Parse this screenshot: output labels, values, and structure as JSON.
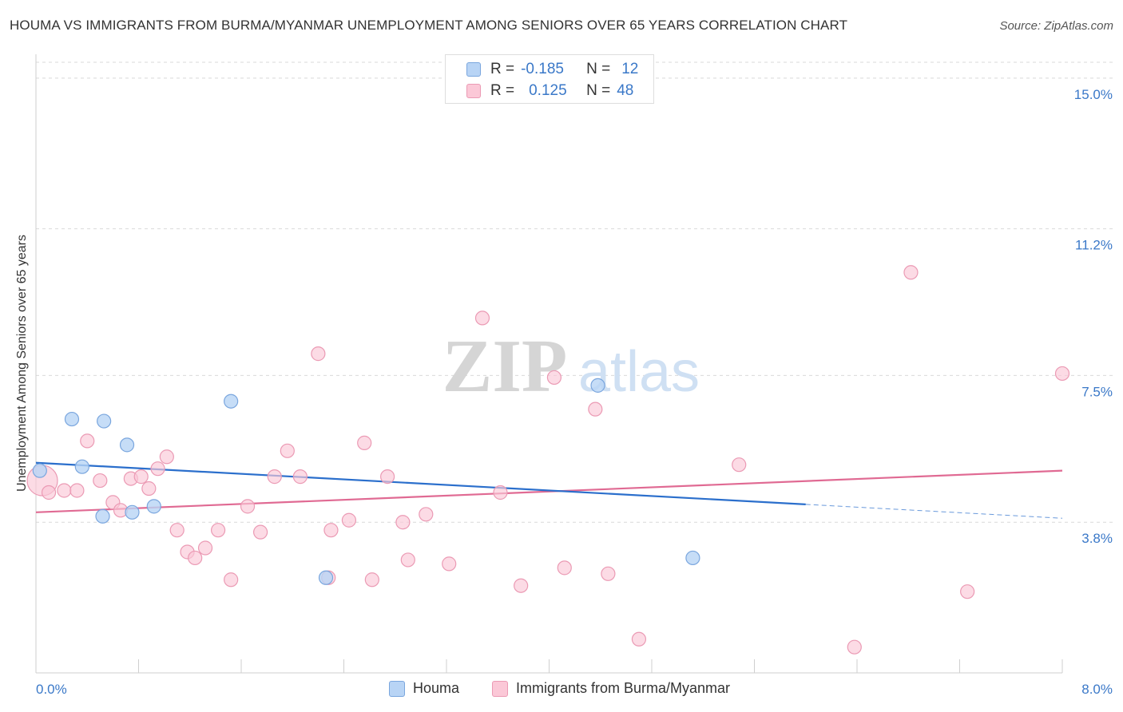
{
  "title": "HOUMA VS IMMIGRANTS FROM BURMA/MYANMAR UNEMPLOYMENT AMONG SENIORS OVER 65 YEARS CORRELATION CHART",
  "source": "Source: ZipAtlas.com",
  "watermark": {
    "zip": "ZIP",
    "atlas": "atlas"
  },
  "legend": {
    "rows": [
      {
        "r_label": "R =",
        "r_value": "-0.185",
        "n_label": "N =",
        "n_value": "12"
      },
      {
        "r_label": "R =",
        "r_value": "0.125",
        "n_label": "N =",
        "n_value": "48"
      }
    ]
  },
  "colors": {
    "houma_fill": "#b8d4f5",
    "houma_stroke": "#7aa6de",
    "houma_line": "#2b6fcc",
    "burma_fill": "#fbc8d7",
    "burma_stroke": "#eb9ab4",
    "burma_line": "#e06a93",
    "axis_text": "#3a78c8",
    "grid": "#d9d9d9"
  },
  "chart_data": {
    "type": "scatter",
    "title": "HOUMA VS IMMIGRANTS FROM BURMA/MYANMAR UNEMPLOYMENT AMONG SENIORS OVER 65 YEARS CORRELATION CHART",
    "xlabel": "",
    "ylabel": "Unemployment Among Seniors over 65 years",
    "xlim": [
      0,
      8
    ],
    "ylim": [
      0,
      15.4
    ],
    "x_tick_labels": [
      "0.0%",
      "8.0%"
    ],
    "y_ticks": [
      3.8,
      7.5,
      11.2,
      15.0
    ],
    "y_tick_labels": [
      "3.8%",
      "7.5%",
      "11.2%",
      "15.0%"
    ],
    "grid": "horizontal dashed",
    "legend_position": "top-center",
    "series": [
      {
        "name": "Houma",
        "r": -0.185,
        "n": 12,
        "points": [
          [
            0.03,
            5.1
          ],
          [
            0.28,
            6.4
          ],
          [
            0.53,
            6.35
          ],
          [
            0.71,
            5.75
          ],
          [
            0.36,
            5.2
          ],
          [
            0.52,
            3.95
          ],
          [
            1.52,
            6.85
          ],
          [
            4.38,
            7.25
          ],
          [
            0.75,
            4.05
          ],
          [
            0.92,
            4.2
          ],
          [
            2.26,
            2.4
          ],
          [
            5.12,
            2.9
          ]
        ],
        "trend": {
          "x": [
            0.0,
            6.0
          ],
          "y": [
            5.3,
            4.25
          ],
          "dashed_extension": {
            "x": [
              6.0,
              8.0
            ],
            "y": [
              4.25,
              3.9
            ]
          }
        }
      },
      {
        "name": "Immigrants from Burma/Myanmar",
        "r": 0.125,
        "n": 48,
        "points": [
          [
            0.05,
            4.85
          ],
          [
            0.1,
            4.55
          ],
          [
            0.22,
            4.6
          ],
          [
            0.32,
            4.6
          ],
          [
            0.4,
            5.85
          ],
          [
            0.5,
            4.85
          ],
          [
            0.6,
            4.3
          ],
          [
            0.66,
            4.1
          ],
          [
            0.74,
            4.9
          ],
          [
            0.82,
            4.95
          ],
          [
            0.88,
            4.65
          ],
          [
            0.95,
            5.15
          ],
          [
            1.02,
            5.45
          ],
          [
            1.1,
            3.6
          ],
          [
            1.18,
            3.05
          ],
          [
            1.24,
            2.9
          ],
          [
            1.32,
            3.15
          ],
          [
            1.42,
            3.6
          ],
          [
            1.52,
            2.35
          ],
          [
            1.65,
            4.2
          ],
          [
            1.75,
            3.55
          ],
          [
            1.86,
            4.95
          ],
          [
            1.96,
            5.6
          ],
          [
            2.06,
            4.95
          ],
          [
            2.2,
            8.05
          ],
          [
            2.3,
            3.6
          ],
          [
            2.44,
            3.85
          ],
          [
            2.56,
            5.8
          ],
          [
            2.62,
            2.35
          ],
          [
            2.74,
            4.95
          ],
          [
            2.86,
            3.8
          ],
          [
            2.9,
            2.85
          ],
          [
            3.04,
            4.0
          ],
          [
            3.22,
            2.75
          ],
          [
            3.48,
            8.95
          ],
          [
            3.62,
            4.55
          ],
          [
            3.78,
            2.2
          ],
          [
            4.04,
            7.45
          ],
          [
            4.12,
            2.65
          ],
          [
            4.36,
            6.65
          ],
          [
            4.46,
            2.5
          ],
          [
            4.7,
            0.85
          ],
          [
            5.48,
            5.25
          ],
          [
            6.38,
            0.65
          ],
          [
            6.82,
            10.1
          ],
          [
            7.26,
            2.05
          ],
          [
            8.0,
            7.55
          ],
          [
            2.28,
            2.4
          ]
        ],
        "trend": {
          "x": [
            0.0,
            8.0
          ],
          "y": [
            4.05,
            5.1
          ]
        }
      }
    ]
  },
  "bottom_legend": {
    "houma": "Houma",
    "burma": "Immigrants from Burma/Myanmar"
  }
}
